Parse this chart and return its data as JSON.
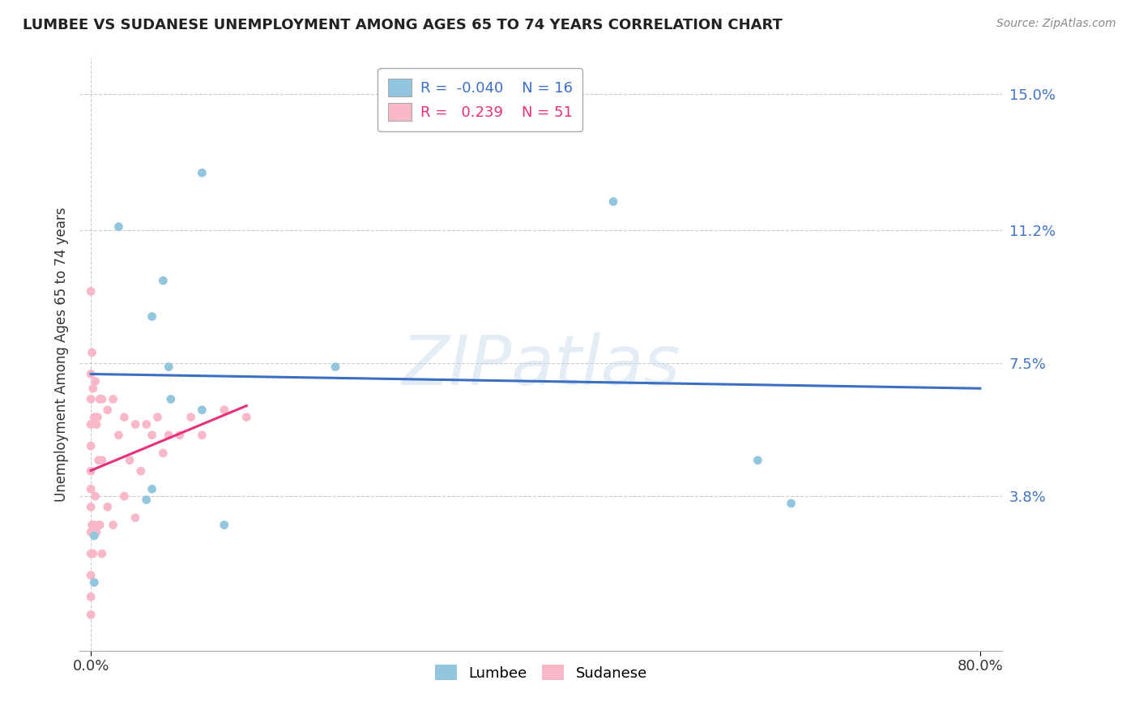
{
  "title": "LUMBEE VS SUDANESE UNEMPLOYMENT AMONG AGES 65 TO 74 YEARS CORRELATION CHART",
  "source": "Source: ZipAtlas.com",
  "ylabel": "Unemployment Among Ages 65 to 74 years",
  "xlim": [
    -0.01,
    0.82
  ],
  "ylim": [
    -0.005,
    0.16
  ],
  "yticks": [
    0.038,
    0.075,
    0.112,
    0.15
  ],
  "ytick_labels": [
    "3.8%",
    "7.5%",
    "11.2%",
    "15.0%"
  ],
  "xticks": [
    0.0,
    0.8
  ],
  "xtick_labels": [
    "0.0%",
    "80.0%"
  ],
  "lumbee_scatter_color": "#92C5DE",
  "sudanese_scatter_color": "#F9B8C8",
  "lumbee_R": -0.04,
  "lumbee_N": 16,
  "sudanese_R": 0.239,
  "sudanese_N": 51,
  "lumbee_points_x": [
    0.003,
    0.003,
    0.025,
    0.05,
    0.055,
    0.055,
    0.065,
    0.07,
    0.072,
    0.1,
    0.1,
    0.22,
    0.47,
    0.6,
    0.63,
    0.12
  ],
  "lumbee_points_y": [
    0.014,
    0.027,
    0.113,
    0.037,
    0.088,
    0.04,
    0.098,
    0.074,
    0.065,
    0.128,
    0.062,
    0.074,
    0.12,
    0.048,
    0.036,
    0.03
  ],
  "sudanese_points_x": [
    0.0,
    0.0,
    0.0,
    0.0,
    0.0,
    0.0,
    0.0,
    0.0,
    0.0,
    0.0,
    0.0,
    0.0,
    0.0,
    0.001,
    0.001,
    0.002,
    0.002,
    0.003,
    0.003,
    0.004,
    0.004,
    0.005,
    0.005,
    0.006,
    0.007,
    0.008,
    0.008,
    0.01,
    0.01,
    0.01,
    0.015,
    0.015,
    0.02,
    0.02,
    0.025,
    0.03,
    0.03,
    0.035,
    0.04,
    0.04,
    0.045,
    0.05,
    0.055,
    0.06,
    0.065,
    0.07,
    0.08,
    0.09,
    0.1,
    0.12,
    0.14
  ],
  "sudanese_points_y": [
    0.095,
    0.072,
    0.065,
    0.058,
    0.052,
    0.045,
    0.04,
    0.035,
    0.028,
    0.022,
    0.016,
    0.01,
    0.005,
    0.078,
    0.03,
    0.068,
    0.022,
    0.06,
    0.03,
    0.07,
    0.038,
    0.058,
    0.028,
    0.06,
    0.048,
    0.065,
    0.03,
    0.065,
    0.048,
    0.022,
    0.062,
    0.035,
    0.065,
    0.03,
    0.055,
    0.06,
    0.038,
    0.048,
    0.058,
    0.032,
    0.045,
    0.058,
    0.055,
    0.06,
    0.05,
    0.055,
    0.055,
    0.06,
    0.055,
    0.062,
    0.06
  ],
  "watermark_text": "ZIPatlas",
  "background_color": "#ffffff",
  "grid_color": "#cccccc",
  "lumbee_line_color": "#3A6FC4",
  "sudanese_line_color": "#E8307A",
  "ytick_color": "#4472c4",
  "legend_edge_color": "#aaaaaa",
  "lumbee_legend_color": "#92C5DE",
  "sudanese_legend_color": "#F9B8C8"
}
